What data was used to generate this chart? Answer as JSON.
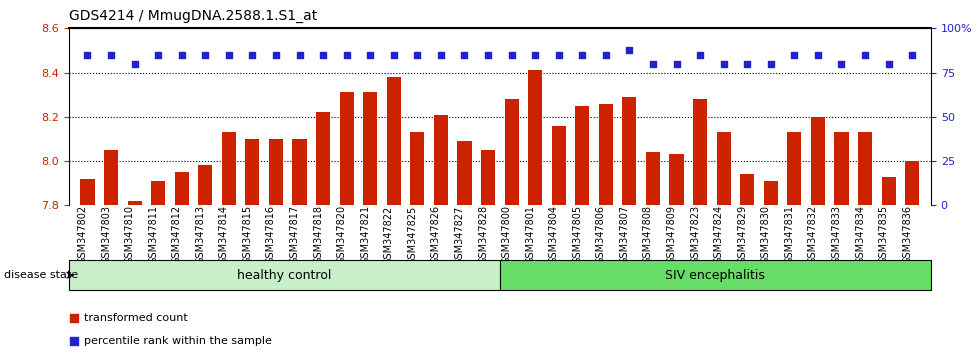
{
  "title": "GDS4214 / MmugDNA.2588.1.S1_at",
  "samples": [
    "GSM347802",
    "GSM347803",
    "GSM347810",
    "GSM347811",
    "GSM347812",
    "GSM347813",
    "GSM347814",
    "GSM347815",
    "GSM347816",
    "GSM347817",
    "GSM347818",
    "GSM347820",
    "GSM347821",
    "GSM347822",
    "GSM347825",
    "GSM347826",
    "GSM347827",
    "GSM347828",
    "GSM347800",
    "GSM347801",
    "GSM347804",
    "GSM347805",
    "GSM347806",
    "GSM347807",
    "GSM347808",
    "GSM347809",
    "GSM347823",
    "GSM347824",
    "GSM347829",
    "GSM347830",
    "GSM347831",
    "GSM347832",
    "GSM347833",
    "GSM347834",
    "GSM347835",
    "GSM347836"
  ],
  "bar_values": [
    7.92,
    8.05,
    7.82,
    7.91,
    7.95,
    7.98,
    8.13,
    8.1,
    8.1,
    8.1,
    8.22,
    8.31,
    8.31,
    8.38,
    8.13,
    8.21,
    8.09,
    8.05,
    8.28,
    8.41,
    8.16,
    8.25,
    8.26,
    8.29,
    8.04,
    8.03,
    8.28,
    8.13,
    7.94,
    7.91,
    8.13,
    8.2,
    8.13,
    8.13,
    7.93,
    8.0
  ],
  "percentile_values": [
    85,
    85,
    80,
    85,
    85,
    85,
    85,
    85,
    85,
    85,
    85,
    85,
    85,
    85,
    85,
    85,
    85,
    85,
    85,
    85,
    85,
    85,
    85,
    88,
    80,
    80,
    85,
    80,
    80,
    80,
    85,
    85,
    80,
    85,
    80,
    85
  ],
  "healthy_count": 18,
  "bar_color": "#cc2200",
  "percentile_color": "#2222cc",
  "healthy_color": "#c8f0c8",
  "siv_color": "#66dd66",
  "ylim_left": [
    7.8,
    8.6
  ],
  "ylim_right": [
    0,
    100
  ],
  "yticks_left": [
    7.8,
    8.0,
    8.2,
    8.4,
    8.6
  ],
  "yticks_right": [
    0,
    25,
    50,
    75,
    100
  ],
  "ytick_labels_right": [
    "0",
    "25",
    "50",
    "75",
    "100%"
  ],
  "ylabel_left_color": "#cc2200",
  "ylabel_right_color": "#2222cc",
  "legend_bar_label": "transformed count",
  "legend_dot_label": "percentile rank within the sample",
  "disease_state_label": "disease state",
  "healthy_label": "healthy control",
  "siv_label": "SIV encephalitis",
  "background_color": "#ffffff",
  "tick_label_fontsize": 7,
  "bar_width": 0.6
}
